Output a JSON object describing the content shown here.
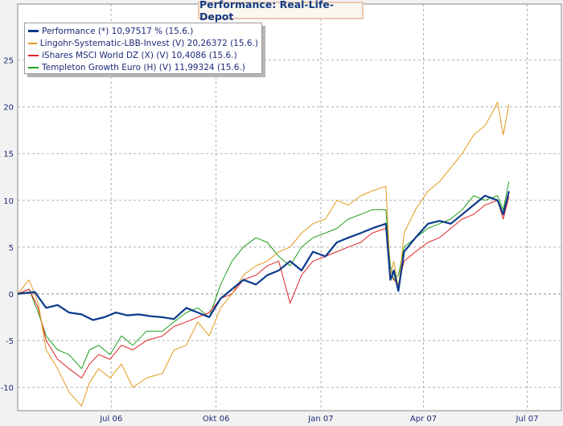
{
  "title": "Performance: Real-Life-Depot",
  "chart_data": {
    "type": "line",
    "title": "Performance: Real-Life-Depot",
    "xlabel": "",
    "ylabel": "",
    "ylim": [
      -12.5,
      31
    ],
    "yticks": [
      -10,
      -5,
      0,
      5,
      10,
      15,
      20,
      25
    ],
    "xticks": [
      "Jul 06",
      "Okt 06",
      "Jan 07",
      "Apr 07",
      "Jul 07"
    ],
    "x_start": "2006-04-10",
    "x_end": "2007-07-31",
    "grid": true,
    "legend_position": "top-left",
    "series": [
      {
        "name": "Performance (*) 10,97517 % (15.6.)",
        "color": "#0b3a8c",
        "x": [
          "2006-04-10",
          "2006-04-25",
          "2006-05-05",
          "2006-05-15",
          "2006-05-25",
          "2006-06-05",
          "2006-06-15",
          "2006-06-25",
          "2006-07-05",
          "2006-07-15",
          "2006-07-25",
          "2006-08-05",
          "2006-08-15",
          "2006-08-25",
          "2006-09-05",
          "2006-09-15",
          "2006-09-25",
          "2006-10-05",
          "2006-10-15",
          "2006-10-25",
          "2006-11-05",
          "2006-11-15",
          "2006-11-25",
          "2006-12-05",
          "2006-12-15",
          "2006-12-25",
          "2007-01-05",
          "2007-01-15",
          "2007-01-25",
          "2007-02-05",
          "2007-02-15",
          "2007-02-27",
          "2007-03-03",
          "2007-03-06",
          "2007-03-10",
          "2007-03-15",
          "2007-03-25",
          "2007-04-05",
          "2007-04-15",
          "2007-04-25",
          "2007-05-05",
          "2007-05-15",
          "2007-05-25",
          "2007-06-05",
          "2007-06-10",
          "2007-06-15"
        ],
        "values": [
          0,
          0.2,
          -1.5,
          -1.2,
          -2.0,
          -2.2,
          -2.8,
          -2.5,
          -2.0,
          -2.3,
          -2.2,
          -2.4,
          -2.5,
          -2.7,
          -1.5,
          -2.0,
          -2.5,
          -0.5,
          0.5,
          1.5,
          1.0,
          2.0,
          2.5,
          3.5,
          2.5,
          4.5,
          4.0,
          5.5,
          6.0,
          6.5,
          7.0,
          7.5,
          1.5,
          2.5,
          0.3,
          4.5,
          6.0,
          7.5,
          7.8,
          7.5,
          8.5,
          9.5,
          10.5,
          10.0,
          8.5,
          10.97517
        ]
      },
      {
        "name": "Lingohr-Systematic-LBB-Invest (V) 20,26372 (15.6.)",
        "color": "#e39a1c",
        "x": [
          "2006-04-10",
          "2006-04-20",
          "2006-04-28",
          "2006-05-05",
          "2006-05-15",
          "2006-05-25",
          "2006-06-05",
          "2006-06-12",
          "2006-06-20",
          "2006-06-30",
          "2006-07-10",
          "2006-07-20",
          "2006-08-01",
          "2006-08-15",
          "2006-08-25",
          "2006-09-05",
          "2006-09-15",
          "2006-09-25",
          "2006-10-05",
          "2006-10-15",
          "2006-10-25",
          "2006-11-05",
          "2006-11-15",
          "2006-11-25",
          "2006-12-05",
          "2006-12-15",
          "2006-12-25",
          "2007-01-05",
          "2007-01-15",
          "2007-01-25",
          "2007-02-05",
          "2007-02-15",
          "2007-02-27",
          "2007-03-03",
          "2007-03-06",
          "2007-03-10",
          "2007-03-15",
          "2007-03-25",
          "2007-04-05",
          "2007-04-15",
          "2007-04-25",
          "2007-05-05",
          "2007-05-15",
          "2007-05-25",
          "2007-06-01",
          "2007-06-05",
          "2007-06-10",
          "2007-06-15"
        ],
        "values": [
          0,
          1.5,
          -1.0,
          -6.0,
          -8.0,
          -10.5,
          -12.0,
          -9.5,
          -8.0,
          -9.0,
          -7.5,
          -10.0,
          -9.0,
          -8.5,
          -6.0,
          -5.5,
          -3.0,
          -4.5,
          -1.5,
          0,
          2.0,
          3.0,
          3.5,
          4.5,
          5.0,
          6.5,
          7.5,
          8.0,
          10.0,
          9.5,
          10.5,
          11.0,
          11.5,
          2.0,
          3.5,
          0.5,
          6.5,
          9.0,
          11.0,
          12.0,
          13.5,
          15.0,
          17.0,
          18.0,
          19.5,
          20.5,
          17.0,
          20.26372
        ]
      },
      {
        "name": "iShares MSCI World DZ (X) (V) 10,4086 (15.6.)",
        "color": "#e02424",
        "x": [
          "2006-04-10",
          "2006-04-20",
          "2006-04-28",
          "2006-05-05",
          "2006-05-15",
          "2006-05-25",
          "2006-06-05",
          "2006-06-12",
          "2006-06-20",
          "2006-06-30",
          "2006-07-10",
          "2006-07-20",
          "2006-08-01",
          "2006-08-15",
          "2006-08-25",
          "2006-09-05",
          "2006-09-15",
          "2006-09-25",
          "2006-10-05",
          "2006-10-15",
          "2006-10-25",
          "2006-11-05",
          "2006-11-15",
          "2006-11-25",
          "2006-12-05",
          "2006-12-15",
          "2006-12-25",
          "2007-01-05",
          "2007-01-15",
          "2007-01-25",
          "2007-02-05",
          "2007-02-15",
          "2007-02-27",
          "2007-03-03",
          "2007-03-06",
          "2007-03-10",
          "2007-03-15",
          "2007-03-25",
          "2007-04-05",
          "2007-04-15",
          "2007-04-25",
          "2007-05-05",
          "2007-05-15",
          "2007-05-25",
          "2007-06-05",
          "2007-06-10",
          "2007-06-15"
        ],
        "values": [
          0,
          0.5,
          -1.5,
          -5.0,
          -7.0,
          -8.0,
          -9.0,
          -7.5,
          -6.5,
          -7.0,
          -5.5,
          -6.0,
          -5.0,
          -4.5,
          -3.5,
          -3.0,
          -2.5,
          -2.0,
          -0.5,
          0,
          1.5,
          2.0,
          3.0,
          3.5,
          -1.0,
          2.0,
          3.5,
          4.0,
          4.5,
          5.0,
          5.5,
          6.5,
          7.0,
          2.0,
          1.5,
          1.0,
          3.5,
          4.5,
          5.5,
          6.0,
          7.0,
          8.0,
          8.5,
          9.5,
          10.0,
          8.0,
          10.4086
        ]
      },
      {
        "name": "Templeton Growth Euro (H) (V) 11,99324 (15.6.)",
        "color": "#1e9e1e",
        "x": [
          "2006-04-10",
          "2006-04-20",
          "2006-04-28",
          "2006-05-05",
          "2006-05-15",
          "2006-05-25",
          "2006-06-05",
          "2006-06-12",
          "2006-06-20",
          "2006-06-30",
          "2006-07-10",
          "2006-07-20",
          "2006-08-01",
          "2006-08-15",
          "2006-08-25",
          "2006-09-05",
          "2006-09-15",
          "2006-09-25",
          "2006-10-05",
          "2006-10-15",
          "2006-10-25",
          "2006-11-05",
          "2006-11-15",
          "2006-11-25",
          "2006-12-05",
          "2006-12-15",
          "2006-12-25",
          "2007-01-05",
          "2007-01-15",
          "2007-01-25",
          "2007-02-05",
          "2007-02-15",
          "2007-02-27",
          "2007-03-03",
          "2007-03-06",
          "2007-03-10",
          "2007-03-15",
          "2007-03-25",
          "2007-04-05",
          "2007-04-15",
          "2007-04-25",
          "2007-05-05",
          "2007-05-15",
          "2007-05-25",
          "2007-06-05",
          "2007-06-10",
          "2007-06-15"
        ],
        "values": [
          0,
          0.5,
          -2.0,
          -4.5,
          -6.0,
          -6.5,
          -8.0,
          -6.0,
          -5.5,
          -6.5,
          -4.5,
          -5.5,
          -4.0,
          -4.0,
          -3.0,
          -2.0,
          -1.5,
          -2.5,
          1.0,
          3.5,
          5.0,
          6.0,
          5.5,
          4.0,
          3.0,
          5.0,
          6.0,
          6.5,
          7.0,
          8.0,
          8.5,
          9.0,
          9.0,
          3.0,
          1.5,
          2.0,
          5.0,
          6.0,
          7.0,
          7.5,
          8.0,
          9.0,
          10.5,
          10.0,
          10.5,
          9.0,
          11.99324
        ]
      }
    ]
  }
}
